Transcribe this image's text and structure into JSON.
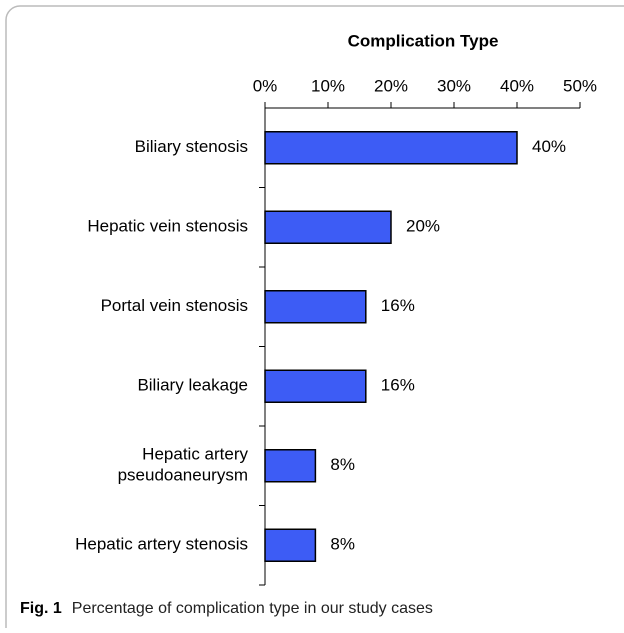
{
  "chart_data": {
    "type": "barh",
    "title": "Complication Type",
    "categories": [
      "Biliary stenosis",
      "Hepatic vein stenosis",
      "Portal vein stenosis",
      "Biliary leakage",
      "Hepatic artery pseudoaneurysm",
      "Hepatic artery stenosis"
    ],
    "values": [
      40,
      20,
      16,
      16,
      8,
      8
    ],
    "value_labels": [
      "40%",
      "20%",
      "16%",
      "16%",
      "8%",
      "8%"
    ],
    "color": "#3d5cf5",
    "xlim": [
      0,
      50
    ],
    "xticks": [
      {
        "value": 0,
        "label": "0%"
      },
      {
        "value": 10,
        "label": "10%"
      },
      {
        "value": 20,
        "label": "20%"
      },
      {
        "value": 30,
        "label": "30%"
      },
      {
        "value": 40,
        "label": "40%"
      },
      {
        "value": 50,
        "label": "50%"
      }
    ],
    "caption_label": "Fig. 1",
    "caption": "Percentage of complication type in our study cases"
  }
}
